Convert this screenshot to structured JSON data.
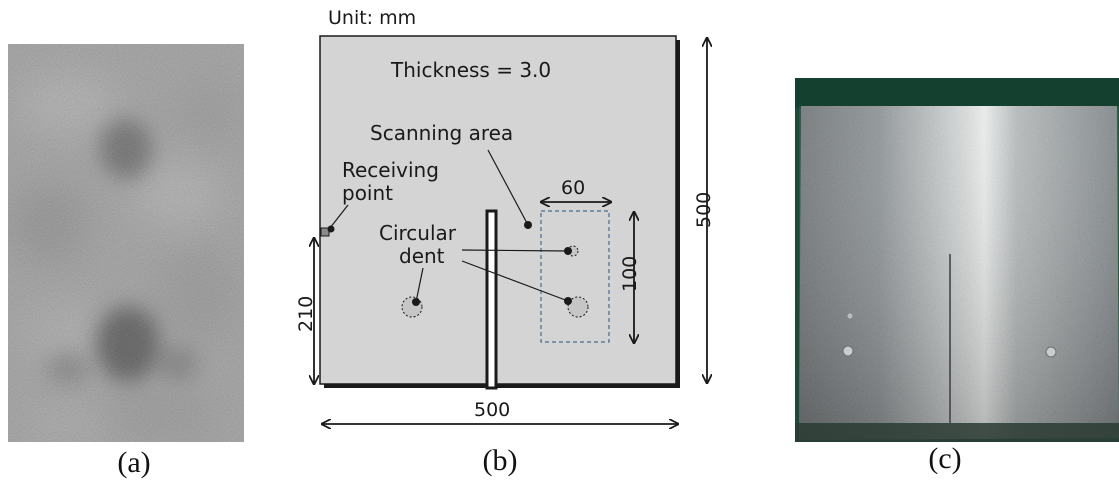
{
  "figure": {
    "panel_a": {
      "caption": "(a)"
    },
    "panel_b": {
      "caption": "(b)",
      "unit_label": "Unit: mm",
      "thickness_label": "Thickness = 3.0",
      "scanning_area_label": "Scanning area",
      "receiving_point_label_line1": "Receiving",
      "receiving_point_label_line2": "point",
      "circular_dent_label_line1": "Circular",
      "circular_dent_label_line2": "dent",
      "dim_scan_width": "60",
      "dim_scan_height": "100",
      "dim_plate_width": "500",
      "dim_plate_height": "500",
      "dim_receiver_height": "210"
    },
    "panel_c": {
      "caption": "(c)"
    }
  },
  "colors": {
    "plate_fill": "#d4d4d4",
    "plate_edge": "#1a1a1a",
    "scan_area_stroke": "#4a6a8a",
    "photo_background": "#1d4a36",
    "photo_metal": "#9aa0a3"
  }
}
